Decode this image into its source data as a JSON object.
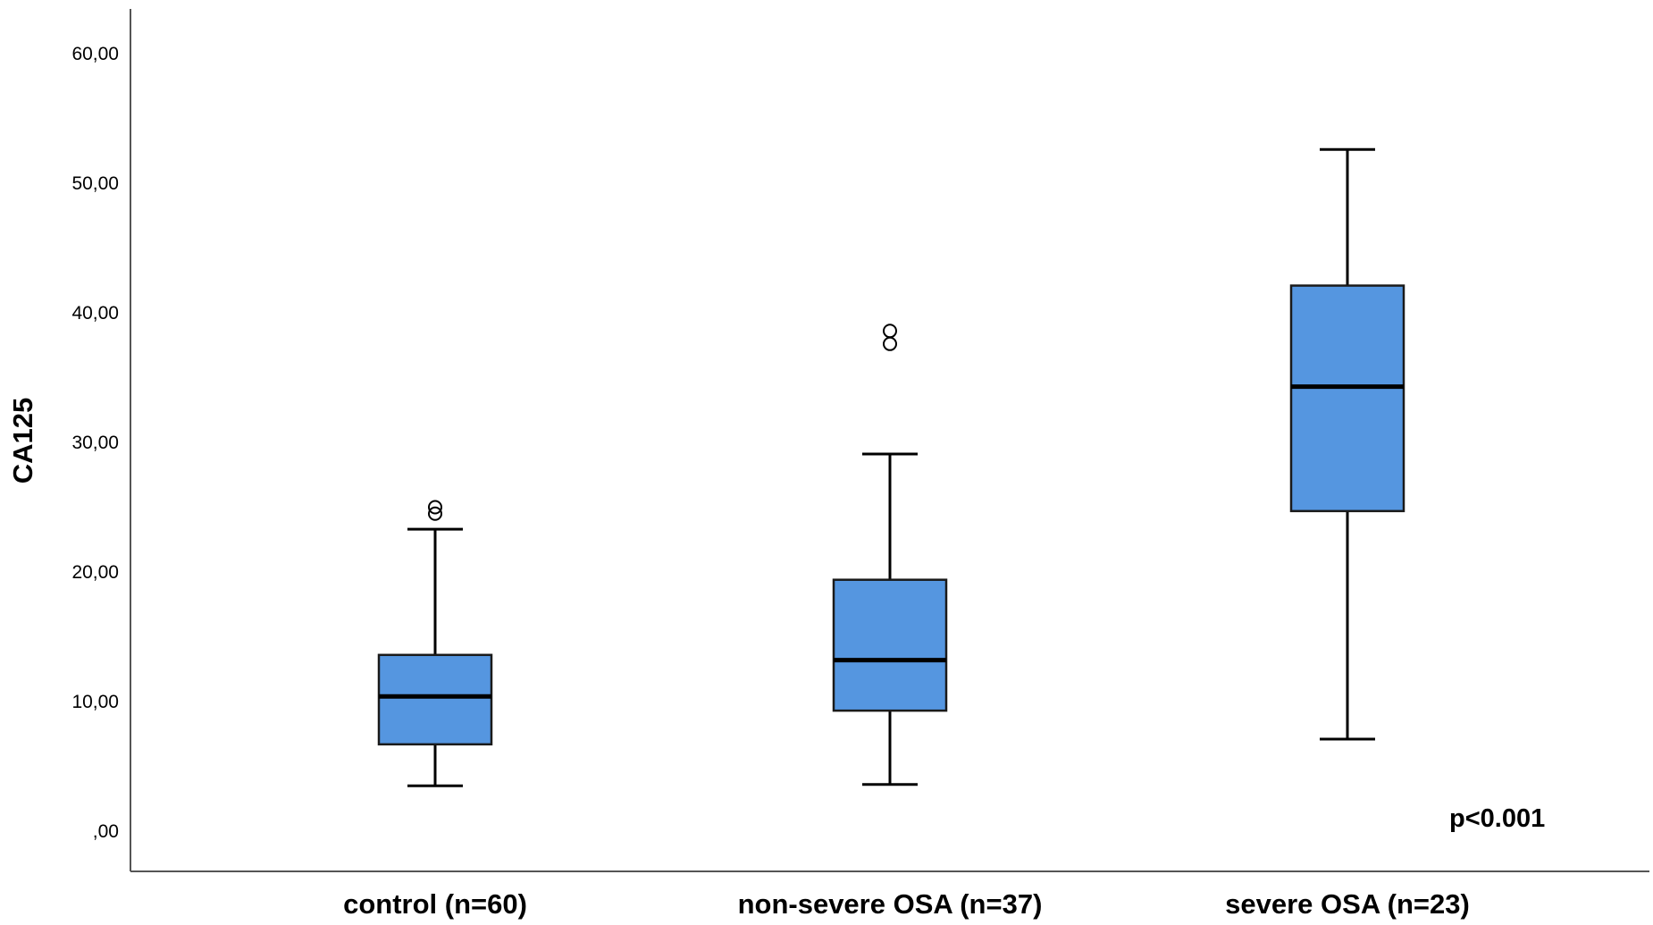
{
  "chart_data": {
    "type": "boxplot",
    "ylabel": "CA125",
    "xlabel": "",
    "ylim": [
      0,
      63
    ],
    "yticks": [
      0,
      10,
      20,
      30,
      40,
      50,
      60
    ],
    "ytick_labels": [
      ",00",
      "10,00",
      "20,00",
      "30,00",
      "40,00",
      "50,00",
      "60,00"
    ],
    "categories": [
      "control (n=60)",
      "non-severe OSA (n=37)",
      "severe OSA (n=23)"
    ],
    "boxes": [
      {
        "min": 3.5,
        "q1": 6.7,
        "median": 10.4,
        "q3": 13.6,
        "max": 23.3,
        "outliers": [
          24.5,
          25.0
        ]
      },
      {
        "min": 3.6,
        "q1": 9.3,
        "median": 13.2,
        "q3": 19.4,
        "max": 29.1,
        "outliers": [
          37.6,
          38.6
        ]
      },
      {
        "min": 7.1,
        "q1": 24.7,
        "median": 34.3,
        "q3": 42.1,
        "max": 52.6,
        "outliers": []
      }
    ],
    "annotation": "p<0.001",
    "box_color": "#5596e0",
    "grid": false
  }
}
